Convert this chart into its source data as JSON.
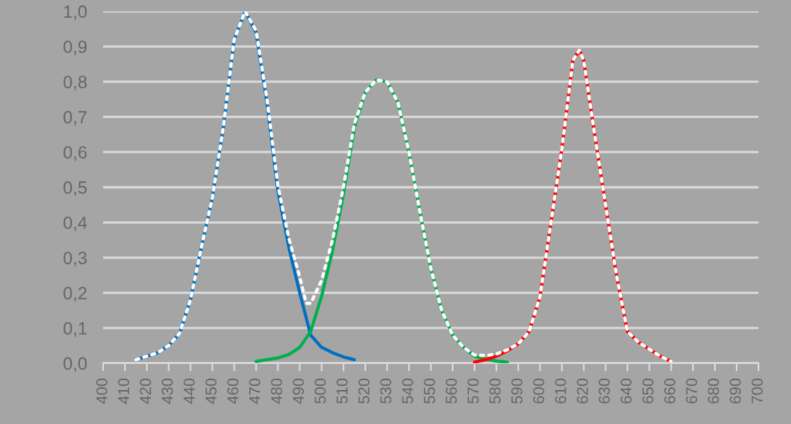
{
  "chart_data": {
    "type": "line",
    "xlim": [
      400,
      700
    ],
    "xticks": [
      400,
      410,
      420,
      430,
      440,
      450,
      460,
      470,
      480,
      490,
      500,
      510,
      520,
      530,
      540,
      550,
      560,
      570,
      580,
      590,
      600,
      610,
      620,
      630,
      640,
      650,
      660,
      670,
      680,
      690,
      700
    ],
    "ylim": [
      0,
      1.0
    ],
    "yticks": [
      {
        "value": 0,
        "label": "0,0"
      },
      {
        "value": 0.1,
        "label": "0,1"
      },
      {
        "value": 0.2,
        "label": "0,2"
      },
      {
        "value": 0.3,
        "label": "0,3"
      },
      {
        "value": 0.4,
        "label": "0,4"
      },
      {
        "value": 0.5,
        "label": "0,5"
      },
      {
        "value": 0.6,
        "label": "0,6"
      },
      {
        "value": 0.7,
        "label": "0,7"
      },
      {
        "value": 0.8,
        "label": "0,8"
      },
      {
        "value": 0.9,
        "label": "0,9"
      },
      {
        "value": 1.0,
        "label": "1,0"
      }
    ],
    "grid": "y",
    "legend": false,
    "marker": "none",
    "series": [
      {
        "color": "#0070c0",
        "line_style": "solid",
        "x": [
          415,
          420,
          425,
          430,
          435,
          440,
          445,
          450,
          455,
          460,
          465,
          470,
          475,
          480,
          485,
          490,
          495,
          500,
          505,
          510,
          515
        ],
        "values": [
          0.01,
          0.02,
          0.03,
          0.05,
          0.085,
          0.18,
          0.33,
          0.47,
          0.67,
          0.92,
          1.0,
          0.94,
          0.74,
          0.49,
          0.33,
          0.2,
          0.08,
          0.045,
          0.03,
          0.018,
          0.01
        ]
      },
      {
        "color": "#00b050",
        "line_style": "solid",
        "x": [
          470,
          475,
          480,
          485,
          490,
          495,
          500,
          505,
          510,
          515,
          520,
          525,
          530,
          535,
          540,
          545,
          550,
          555,
          560,
          565,
          570,
          575,
          580,
          585
        ],
        "values": [
          0.005,
          0.01,
          0.015,
          0.025,
          0.045,
          0.09,
          0.19,
          0.32,
          0.48,
          0.67,
          0.77,
          0.805,
          0.8,
          0.74,
          0.6,
          0.43,
          0.27,
          0.15,
          0.08,
          0.045,
          0.02,
          0.012,
          0.006,
          0.003
        ]
      },
      {
        "color": "#ff0000",
        "line_style": "solid",
        "x": [
          570,
          575,
          580,
          585,
          590,
          595,
          600,
          605,
          610,
          615,
          618,
          620,
          625,
          630,
          635,
          640,
          645,
          650,
          655,
          660
        ],
        "values": [
          0.003,
          0.01,
          0.02,
          0.035,
          0.055,
          0.09,
          0.19,
          0.4,
          0.61,
          0.86,
          0.89,
          0.86,
          0.65,
          0.45,
          0.25,
          0.09,
          0.06,
          0.04,
          0.02,
          0.005
        ]
      },
      {
        "color": "#ffffff",
        "line_style": "dotted",
        "x": [
          415,
          420,
          425,
          430,
          435,
          440,
          445,
          450,
          455,
          460,
          465,
          470,
          475,
          480,
          485,
          490,
          493,
          495,
          500,
          505,
          510,
          515,
          520,
          525,
          530,
          535,
          540,
          545,
          550,
          555,
          560,
          565,
          570,
          575,
          580,
          585,
          590,
          595,
          600,
          605,
          610,
          615,
          618,
          620,
          625,
          630,
          635,
          640,
          645,
          650,
          655,
          660
        ],
        "values": [
          0.01,
          0.02,
          0.03,
          0.05,
          0.085,
          0.18,
          0.33,
          0.47,
          0.67,
          0.92,
          1.0,
          0.945,
          0.75,
          0.505,
          0.355,
          0.245,
          0.17,
          0.17,
          0.235,
          0.35,
          0.5,
          0.68,
          0.77,
          0.805,
          0.8,
          0.74,
          0.6,
          0.43,
          0.27,
          0.15,
          0.08,
          0.045,
          0.023,
          0.022,
          0.026,
          0.038,
          0.055,
          0.09,
          0.19,
          0.4,
          0.61,
          0.86,
          0.89,
          0.86,
          0.65,
          0.45,
          0.25,
          0.09,
          0.06,
          0.04,
          0.02,
          0.005
        ]
      }
    ]
  }
}
